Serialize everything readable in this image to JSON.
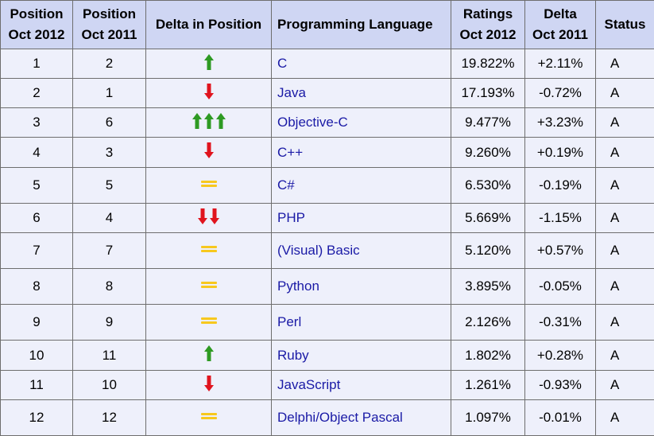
{
  "headers": {
    "position_2012": [
      "Position",
      "Oct 2012"
    ],
    "position_2011": [
      "Position",
      "Oct 2011"
    ],
    "delta_position": "Delta in Position",
    "language": "Programming Language",
    "ratings": [
      "Ratings",
      "Oct 2012"
    ],
    "delta": [
      "Delta",
      "Oct 2011"
    ],
    "status": "Status"
  },
  "colors": {
    "up": "#2e9a23",
    "down": "#e0141e",
    "equal": "#f7c81e",
    "link": "#1a1aa6"
  },
  "rows": [
    {
      "pos2012": "1",
      "pos2011": "2",
      "trend": "up",
      "count": 1,
      "language": "C",
      "rating": "19.822%",
      "delta": "+2.11%",
      "status": "A"
    },
    {
      "pos2012": "2",
      "pos2011": "1",
      "trend": "down",
      "count": 1,
      "language": "Java",
      "rating": "17.193%",
      "delta": "-0.72%",
      "status": "A"
    },
    {
      "pos2012": "3",
      "pos2011": "6",
      "trend": "up",
      "count": 3,
      "language": "Objective-C",
      "rating": "9.477%",
      "delta": "+3.23%",
      "status": "A"
    },
    {
      "pos2012": "4",
      "pos2011": "3",
      "trend": "down",
      "count": 1,
      "language": "C++",
      "rating": "9.260%",
      "delta": "+0.19%",
      "status": "A"
    },
    {
      "pos2012": "5",
      "pos2011": "5",
      "trend": "same",
      "count": 1,
      "language": "C#",
      "rating": "6.530%",
      "delta": "-0.19%",
      "status": "A"
    },
    {
      "pos2012": "6",
      "pos2011": "4",
      "trend": "down",
      "count": 2,
      "language": "PHP",
      "rating": "5.669%",
      "delta": "-1.15%",
      "status": "A"
    },
    {
      "pos2012": "7",
      "pos2011": "7",
      "trend": "same",
      "count": 1,
      "language": "(Visual) Basic",
      "rating": "5.120%",
      "delta": "+0.57%",
      "status": "A"
    },
    {
      "pos2012": "8",
      "pos2011": "8",
      "trend": "same",
      "count": 1,
      "language": "Python",
      "rating": "3.895%",
      "delta": "-0.05%",
      "status": "A"
    },
    {
      "pos2012": "9",
      "pos2011": "9",
      "trend": "same",
      "count": 1,
      "language": "Perl",
      "rating": "2.126%",
      "delta": "-0.31%",
      "status": "A"
    },
    {
      "pos2012": "10",
      "pos2011": "11",
      "trend": "up",
      "count": 1,
      "language": "Ruby",
      "rating": "1.802%",
      "delta": "+0.28%",
      "status": "A"
    },
    {
      "pos2012": "11",
      "pos2011": "10",
      "trend": "down",
      "count": 1,
      "language": "JavaScript",
      "rating": "1.261%",
      "delta": "-0.93%",
      "status": "A"
    },
    {
      "pos2012": "12",
      "pos2011": "12",
      "trend": "same",
      "count": 1,
      "language": "Delphi/Object Pascal",
      "rating": "1.097%",
      "delta": "-0.01%",
      "status": "A"
    }
  ]
}
